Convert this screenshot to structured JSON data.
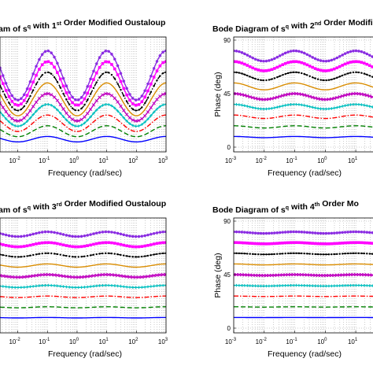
{
  "chart_data": [
    {
      "type": "line",
      "title_parts": [
        {
          "t": "am of s"
        },
        {
          "t": "q",
          "sup": true
        },
        {
          "t": " with 1"
        },
        {
          "t": "st",
          "sup": true
        },
        {
          "t": " Order Modified Oustaloup"
        }
      ],
      "xlabel": "Frequency  (rad/sec)",
      "ylabel": "",
      "x_scale": "log",
      "xlim": [
        0.001,
        1000
      ],
      "x_ticks": [
        {
          "base": "10",
          "exp": "-2"
        },
        {
          "base": "10",
          "exp": "-1"
        },
        {
          "base": "10",
          "exp": "0"
        },
        {
          "base": "10",
          "exp": "1"
        },
        {
          "base": "10",
          "exp": "2"
        },
        {
          "base": "10",
          "exp": "3"
        }
      ],
      "y_ticks": [],
      "ylim": [
        0,
        90
      ],
      "series": [
        {
          "color": "#0000ff",
          "marker": "none",
          "dash": "solid",
          "values": [
            9,
            4.4,
            9,
            4.4,
            9,
            4.4,
            9
          ]
        },
        {
          "color": "#008000",
          "marker": "none",
          "dash": "dash",
          "values": [
            18,
            8.8,
            18,
            8.8,
            18,
            8.8,
            18
          ]
        },
        {
          "color": "#ff0000",
          "marker": "none",
          "dash": "dashdot",
          "values": [
            27,
            13.2,
            27,
            13.2,
            27,
            13.2,
            27
          ]
        },
        {
          "color": "#00bfbf",
          "marker": "plus",
          "dash": "solid",
          "values": [
            36,
            17.6,
            36,
            17.6,
            36,
            17.6,
            36
          ]
        },
        {
          "color": "#bf00bf",
          "marker": "x",
          "dash": "solid",
          "values": [
            45,
            22,
            45,
            22,
            45,
            22,
            45
          ]
        },
        {
          "color": "#d98c00",
          "marker": "none",
          "dash": "solid",
          "values": [
            54,
            26.4,
            54,
            26.4,
            54,
            26.4,
            54
          ]
        },
        {
          "color": "#000000",
          "marker": "dot",
          "dash": "dashdot",
          "values": [
            63,
            30.8,
            63,
            30.8,
            63,
            30.8,
            63
          ]
        },
        {
          "color": "#ff00ff",
          "marker": "square",
          "dash": "solid",
          "values": [
            72,
            35.2,
            72,
            35.2,
            72,
            35.2,
            72
          ]
        },
        {
          "color": "#8a2be2",
          "marker": "star",
          "dash": "solid",
          "values": [
            81,
            39.6,
            81,
            39.6,
            81,
            39.6,
            81
          ]
        }
      ]
    },
    {
      "type": "line",
      "title_parts": [
        {
          "t": "Bode Diagram of s"
        },
        {
          "t": "q",
          "sup": true
        },
        {
          "t": " with 2"
        },
        {
          "t": "nd",
          "sup": true
        },
        {
          "t": " Order Modified O"
        }
      ],
      "xlabel": "Frequency  (rad/sec)",
      "ylabel": "Phase (deg)",
      "x_scale": "log",
      "xlim": [
        0.001,
        1000
      ],
      "x_ticks": [
        {
          "base": "10",
          "exp": "-3"
        },
        {
          "base": "10",
          "exp": "-2"
        },
        {
          "base": "10",
          "exp": "-1"
        },
        {
          "base": "10",
          "exp": "0"
        },
        {
          "base": "10",
          "exp": "1"
        }
      ],
      "y_ticks": [
        {
          "label": "0",
          "value": 0
        },
        {
          "label": "45",
          "value": 45
        },
        {
          "label": "90",
          "value": 90
        }
      ],
      "ylim": [
        0,
        90
      ],
      "series": [
        {
          "color": "#0000ff",
          "marker": "none",
          "dash": "solid",
          "values": [
            9,
            8,
            9,
            8,
            9,
            8,
            9
          ]
        },
        {
          "color": "#008000",
          "marker": "none",
          "dash": "dash",
          "values": [
            18,
            16.1,
            18,
            16.1,
            18,
            16.1,
            18
          ]
        },
        {
          "color": "#ff0000",
          "marker": "none",
          "dash": "dashdot",
          "values": [
            27,
            24.1,
            27,
            24.1,
            27,
            24.1,
            27
          ]
        },
        {
          "color": "#00bfbf",
          "marker": "plus",
          "dash": "solid",
          "values": [
            36,
            32.1,
            36,
            32.1,
            36,
            32.1,
            36
          ]
        },
        {
          "color": "#bf00bf",
          "marker": "x",
          "dash": "solid",
          "values": [
            45,
            40.1,
            45,
            40.1,
            45,
            40.1,
            45
          ]
        },
        {
          "color": "#d98c00",
          "marker": "none",
          "dash": "solid",
          "values": [
            54,
            48.2,
            54,
            48.2,
            54,
            48.2,
            54
          ]
        },
        {
          "color": "#000000",
          "marker": "dot",
          "dash": "dashdot",
          "values": [
            63,
            56.2,
            63,
            56.2,
            63,
            56.2,
            63
          ]
        },
        {
          "color": "#ff00ff",
          "marker": "square",
          "dash": "solid",
          "values": [
            72,
            64.2,
            72,
            64.2,
            72,
            64.2,
            72
          ]
        },
        {
          "color": "#8a2be2",
          "marker": "star",
          "dash": "solid",
          "values": [
            81,
            72.3,
            81,
            72.3,
            81,
            72.3,
            81
          ]
        }
      ]
    },
    {
      "type": "line",
      "title_parts": [
        {
          "t": "am of s"
        },
        {
          "t": "q",
          "sup": true
        },
        {
          "t": " with 3"
        },
        {
          "t": "rd",
          "sup": true
        },
        {
          "t": " Order Modified Oustaloup"
        }
      ],
      "xlabel": "Frequency  (rad/sec)",
      "ylabel": "",
      "x_scale": "log",
      "xlim": [
        0.001,
        1000
      ],
      "x_ticks": [
        {
          "base": "10",
          "exp": "-2"
        },
        {
          "base": "10",
          "exp": "-1"
        },
        {
          "base": "10",
          "exp": "0"
        },
        {
          "base": "10",
          "exp": "1"
        },
        {
          "base": "10",
          "exp": "2"
        },
        {
          "base": "10",
          "exp": "3"
        }
      ],
      "y_ticks": [],
      "ylim": [
        0,
        90
      ],
      "series": [
        {
          "color": "#0000ff",
          "marker": "none",
          "dash": "solid",
          "values": [
            9,
            8.6,
            9,
            8.6,
            9,
            8.6,
            9
          ]
        },
        {
          "color": "#008000",
          "marker": "none",
          "dash": "dash",
          "values": [
            18,
            17.1,
            18,
            17.1,
            18,
            17.1,
            18
          ]
        },
        {
          "color": "#ff0000",
          "marker": "none",
          "dash": "dashdot",
          "values": [
            27,
            25.7,
            27,
            25.7,
            27,
            25.7,
            27
          ]
        },
        {
          "color": "#00bfbf",
          "marker": "plus",
          "dash": "solid",
          "values": [
            36,
            34.2,
            36,
            34.2,
            36,
            34.2,
            36
          ]
        },
        {
          "color": "#bf00bf",
          "marker": "x",
          "dash": "solid",
          "values": [
            45,
            42.8,
            45,
            42.8,
            45,
            42.8,
            45
          ]
        },
        {
          "color": "#d98c00",
          "marker": "none",
          "dash": "solid",
          "values": [
            54,
            51.3,
            54,
            51.3,
            54,
            51.3,
            54
          ]
        },
        {
          "color": "#000000",
          "marker": "dot",
          "dash": "dashdot",
          "values": [
            63,
            59.9,
            63,
            59.9,
            63,
            59.9,
            63
          ]
        },
        {
          "color": "#ff00ff",
          "marker": "square",
          "dash": "solid",
          "values": [
            72,
            68.4,
            72,
            68.4,
            72,
            68.4,
            72
          ]
        },
        {
          "color": "#8a2be2",
          "marker": "star",
          "dash": "solid",
          "values": [
            81,
            77,
            81,
            77,
            81,
            77,
            81
          ]
        }
      ]
    },
    {
      "type": "line",
      "title_parts": [
        {
          "t": "Bode Diagram of s"
        },
        {
          "t": "q",
          "sup": true
        },
        {
          "t": " with 4"
        },
        {
          "t": "th",
          "sup": true
        },
        {
          "t": " Order Mo"
        }
      ],
      "xlabel": "Frequency  (rad/sec)",
      "ylabel": "Phase (deg)",
      "x_scale": "log",
      "xlim": [
        0.001,
        1000
      ],
      "x_ticks": [
        {
          "base": "10",
          "exp": "-3"
        },
        {
          "base": "10",
          "exp": "-2"
        },
        {
          "base": "10",
          "exp": "-1"
        },
        {
          "base": "10",
          "exp": "0"
        },
        {
          "base": "10",
          "exp": "1"
        }
      ],
      "y_ticks": [
        {
          "label": "0",
          "value": 0
        },
        {
          "label": "45",
          "value": 45
        },
        {
          "label": "90",
          "value": 90
        }
      ],
      "ylim": [
        0,
        90
      ],
      "series": [
        {
          "color": "#0000ff",
          "marker": "none",
          "dash": "solid",
          "values": [
            9,
            8.9,
            9,
            8.9,
            9,
            8.9,
            9
          ]
        },
        {
          "color": "#008000",
          "marker": "none",
          "dash": "dash",
          "values": [
            18,
            17.7,
            18,
            17.7,
            18,
            17.7,
            18
          ]
        },
        {
          "color": "#ff0000",
          "marker": "none",
          "dash": "dashdot",
          "values": [
            27,
            26.6,
            27,
            26.6,
            27,
            26.6,
            27
          ]
        },
        {
          "color": "#00bfbf",
          "marker": "plus",
          "dash": "solid",
          "values": [
            36,
            35.4,
            36,
            35.4,
            36,
            35.4,
            36
          ]
        },
        {
          "color": "#bf00bf",
          "marker": "x",
          "dash": "solid",
          "values": [
            45,
            44.3,
            45,
            44.3,
            45,
            44.3,
            45
          ]
        },
        {
          "color": "#d98c00",
          "marker": "none",
          "dash": "solid",
          "values": [
            54,
            53.2,
            54,
            53.2,
            54,
            53.2,
            54
          ]
        },
        {
          "color": "#000000",
          "marker": "dot",
          "dash": "dashdot",
          "values": [
            63,
            62,
            63,
            62,
            63,
            62,
            63
          ]
        },
        {
          "color": "#ff00ff",
          "marker": "square",
          "dash": "solid",
          "values": [
            72,
            70.9,
            72,
            70.9,
            72,
            70.9,
            72
          ]
        },
        {
          "color": "#8a2be2",
          "marker": "star",
          "dash": "solid",
          "values": [
            81,
            79.7,
            81,
            79.7,
            81,
            79.7,
            81
          ]
        }
      ]
    }
  ]
}
